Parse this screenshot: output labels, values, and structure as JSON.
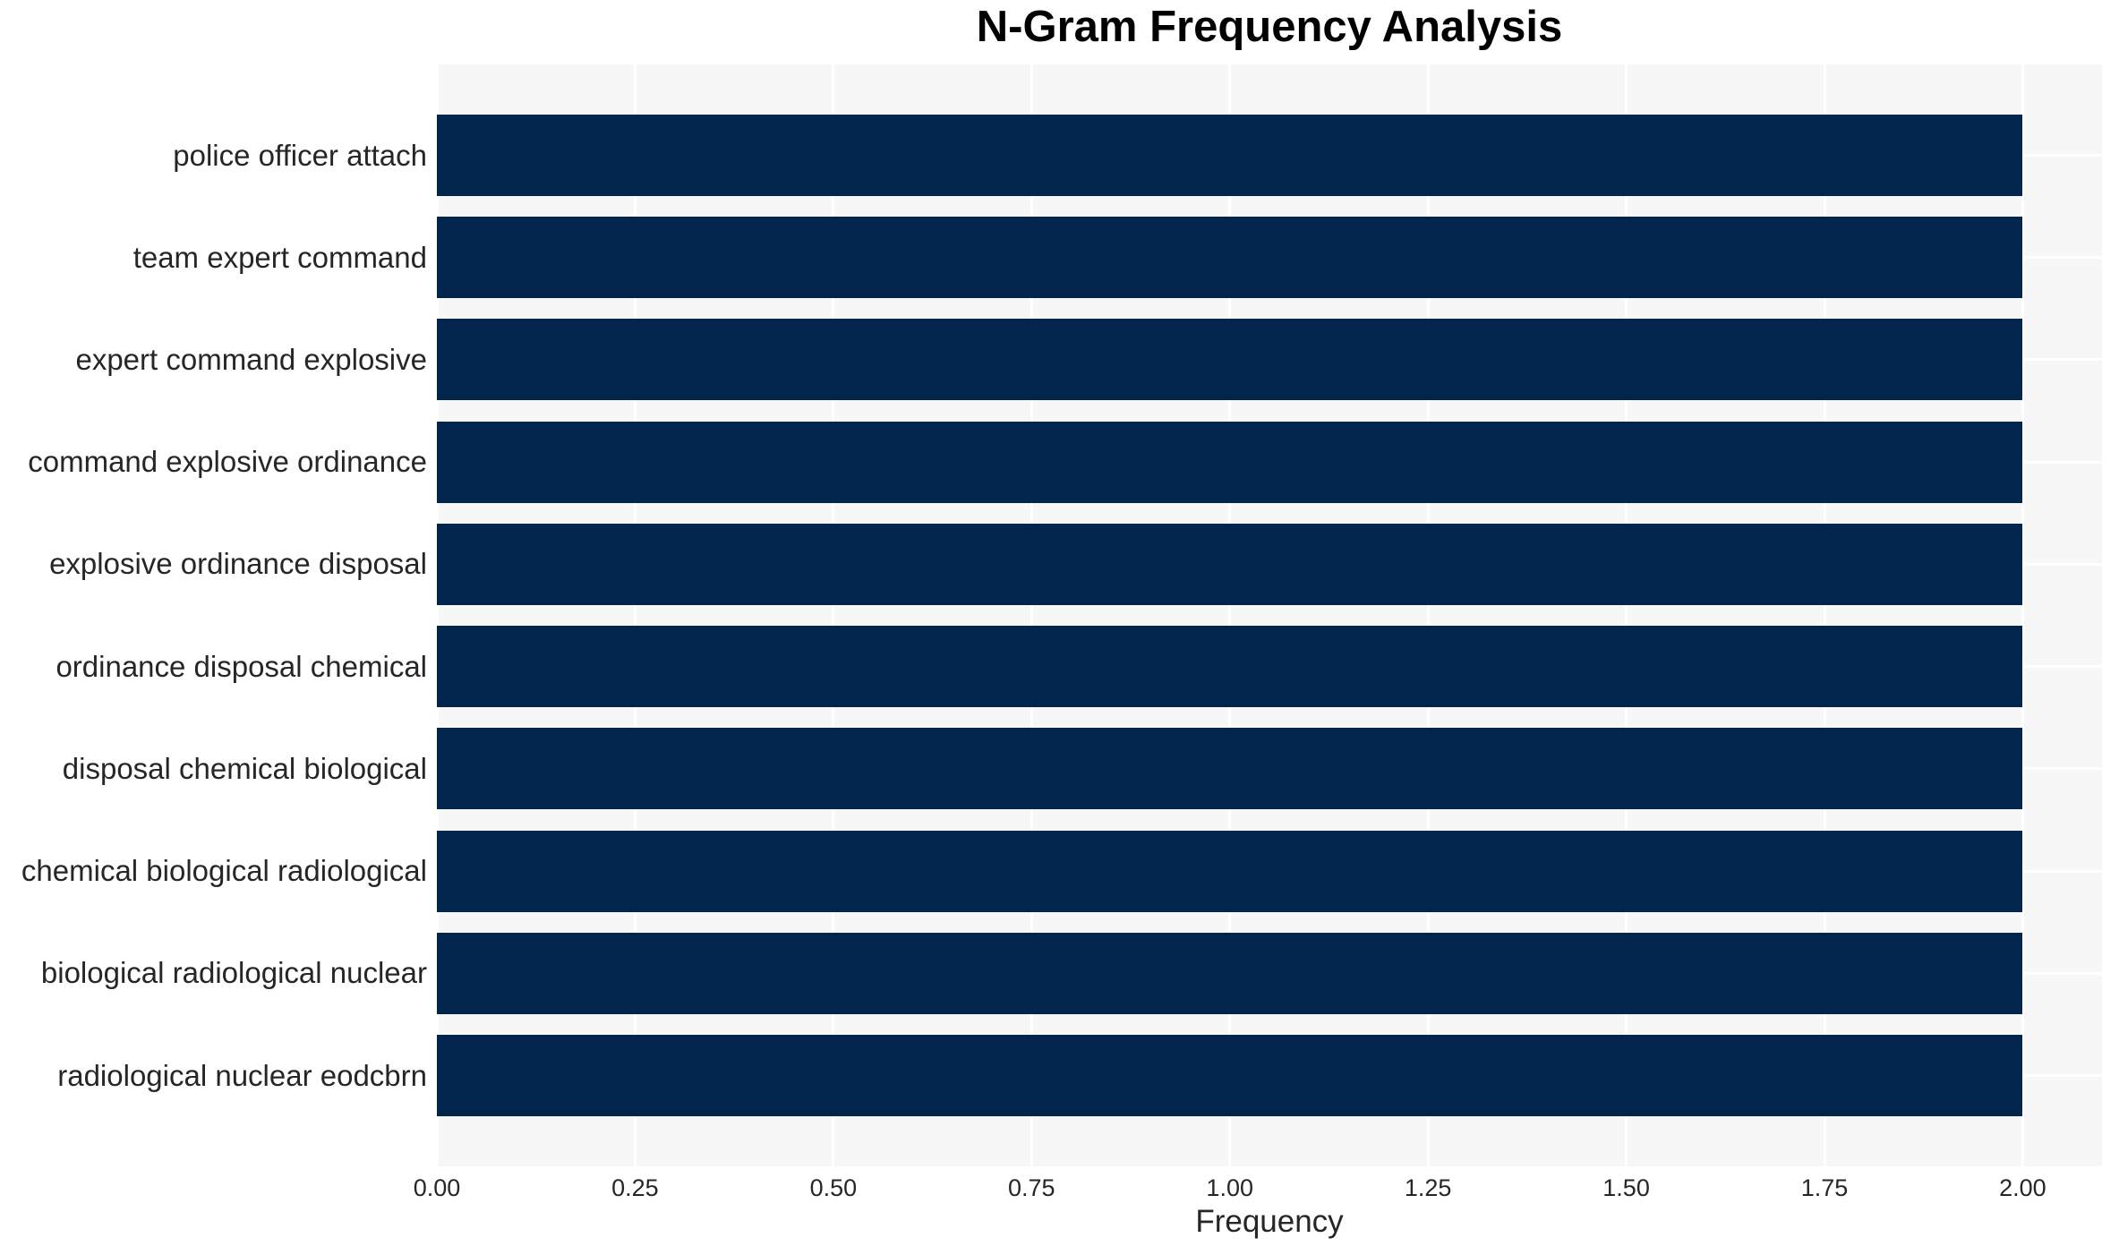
{
  "chart_data": {
    "type": "bar",
    "orientation": "horizontal",
    "title": "N-Gram Frequency Analysis",
    "xlabel": "Frequency",
    "ylabel": "",
    "categories": [
      "police officer attach",
      "team expert command",
      "expert command explosive",
      "command explosive ordinance",
      "explosive ordinance disposal",
      "ordinance disposal chemical",
      "disposal chemical biological",
      "chemical biological radiological",
      "biological radiological nuclear",
      "radiological nuclear eodcbrn"
    ],
    "values": [
      2,
      2,
      2,
      2,
      2,
      2,
      2,
      2,
      2,
      2
    ],
    "x_ticks": [
      {
        "value": 0.0,
        "label": "0.00"
      },
      {
        "value": 0.25,
        "label": "0.25"
      },
      {
        "value": 0.5,
        "label": "0.50"
      },
      {
        "value": 0.75,
        "label": "0.75"
      },
      {
        "value": 1.0,
        "label": "1.00"
      },
      {
        "value": 1.25,
        "label": "1.25"
      },
      {
        "value": 1.5,
        "label": "1.50"
      },
      {
        "value": 1.75,
        "label": "1.75"
      },
      {
        "value": 2.0,
        "label": "2.00"
      }
    ],
    "xlim": [
      0,
      2.1
    ],
    "grid": true,
    "legend": null,
    "colors": {
      "bar": "#02254e",
      "plot_background": "#f7f7f7",
      "figure_background": "#ffffff",
      "gridline": "#ffffff",
      "title_text": "#000000",
      "axis_text": "#262626"
    }
  }
}
